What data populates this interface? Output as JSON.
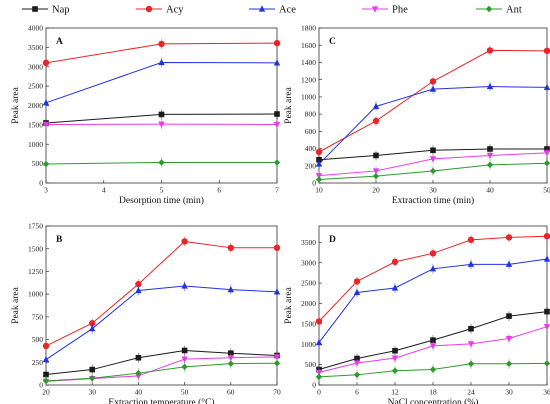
{
  "legend": [
    {
      "name": "Nap",
      "color": "#1a1a1a",
      "marker": "square"
    },
    {
      "name": "Acy",
      "color": "#e8262a",
      "marker": "circle"
    },
    {
      "name": "Ace",
      "color": "#2233e0",
      "marker": "triangle"
    },
    {
      "name": "Phe",
      "color": "#e83ce8",
      "marker": "triangle-down"
    },
    {
      "name": "Ant",
      "color": "#2e9a2e",
      "marker": "diamond"
    }
  ],
  "chart_data": [
    {
      "panel": "A",
      "type": "line",
      "xlabel": "Desorption time (min)",
      "ylabel": "Peak area",
      "x": [
        3,
        5,
        7
      ],
      "xticks": [
        3,
        4,
        5,
        6,
        7
      ],
      "xlim": [
        3,
        7
      ],
      "yticks": [
        0,
        500,
        1000,
        1500,
        2000,
        2500,
        3000,
        3500,
        4000
      ],
      "ylim": [
        0,
        4000
      ],
      "series": [
        {
          "name": "Nap",
          "values": [
            1550,
            1770,
            1780
          ]
        },
        {
          "name": "Acy",
          "values": [
            3100,
            3590,
            3610
          ]
        },
        {
          "name": "Ace",
          "values": [
            2070,
            3110,
            3100
          ]
        },
        {
          "name": "Phe",
          "values": [
            1510,
            1520,
            1510
          ]
        },
        {
          "name": "Ant",
          "values": [
            490,
            530,
            530
          ]
        }
      ]
    },
    {
      "panel": "C",
      "type": "line",
      "xlabel": "Extraction time (min)",
      "ylabel": "Peak area",
      "x": [
        10,
        20,
        30,
        40,
        50
      ],
      "xticks": [
        10,
        20,
        30,
        40,
        50
      ],
      "xlim": [
        10,
        50
      ],
      "yticks": [
        0,
        200,
        400,
        600,
        800,
        1000,
        1200,
        1400,
        1600,
        1800
      ],
      "ylim": [
        0,
        1800
      ],
      "series": [
        {
          "name": "Nap",
          "values": [
            270,
            320,
            380,
            395,
            395
          ]
        },
        {
          "name": "Acy",
          "values": [
            360,
            720,
            1180,
            1540,
            1535
          ]
        },
        {
          "name": "Ace",
          "values": [
            220,
            890,
            1090,
            1120,
            1110
          ]
        },
        {
          "name": "Phe",
          "values": [
            85,
            140,
            280,
            320,
            350
          ]
        },
        {
          "name": "Ant",
          "values": [
            40,
            80,
            140,
            210,
            230
          ]
        }
      ]
    },
    {
      "panel": "B",
      "type": "line",
      "xlabel": "Extraction temperature (°C)",
      "ylabel": "Peak area",
      "x": [
        20,
        30,
        40,
        50,
        60,
        70
      ],
      "xticks": [
        20,
        30,
        40,
        50,
        60,
        70
      ],
      "xlim": [
        20,
        70
      ],
      "yticks": [
        0,
        250,
        500,
        750,
        1000,
        1250,
        1500,
        1750
      ],
      "ylim": [
        0,
        1750
      ],
      "series": [
        {
          "name": "Nap",
          "values": [
            115,
            170,
            300,
            380,
            350,
            325
          ]
        },
        {
          "name": "Acy",
          "values": [
            430,
            680,
            1110,
            1580,
            1510,
            1510
          ]
        },
        {
          "name": "Ace",
          "values": [
            280,
            620,
            1040,
            1090,
            1050,
            1025
          ]
        },
        {
          "name": "Phe",
          "values": [
            40,
            70,
            100,
            285,
            300,
            310
          ]
        },
        {
          "name": "Ant",
          "values": [
            45,
            75,
            130,
            200,
            235,
            240
          ]
        }
      ]
    },
    {
      "panel": "D",
      "type": "line",
      "xlabel": "NaCl concentration (%)",
      "ylabel": "Peak area",
      "x": [
        0,
        6,
        12,
        18,
        24,
        30,
        36
      ],
      "xticks": [
        0,
        6,
        12,
        18,
        24,
        30,
        36
      ],
      "xlim": [
        0,
        36
      ],
      "yticks": [
        0,
        500,
        1000,
        1500,
        2000,
        2500,
        3000,
        3500
      ],
      "ylim": [
        0,
        3900
      ],
      "series": [
        {
          "name": "Nap",
          "values": [
            380,
            650,
            840,
            1100,
            1380,
            1690,
            1800
          ]
        },
        {
          "name": "Acy",
          "values": [
            1560,
            2540,
            3020,
            3230,
            3560,
            3620,
            3650
          ]
        },
        {
          "name": "Ace",
          "values": [
            1040,
            2270,
            2380,
            2850,
            2960,
            2960,
            3090
          ]
        },
        {
          "name": "Phe",
          "values": [
            310,
            540,
            660,
            960,
            1010,
            1140,
            1430
          ]
        },
        {
          "name": "Ant",
          "values": [
            200,
            250,
            350,
            380,
            520,
            520,
            530
          ]
        }
      ]
    }
  ]
}
